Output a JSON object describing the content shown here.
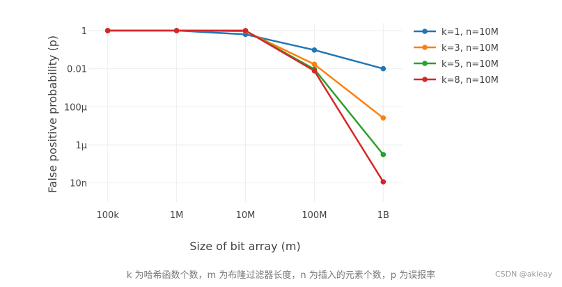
{
  "chart_data": {
    "type": "line",
    "xlabel": "Size of bit array (m)",
    "ylabel": "False positive probability (p)",
    "x_tick_labels": [
      "100k",
      "1M",
      "10M",
      "100M",
      "1B"
    ],
    "y_tick_labels": [
      "1",
      "0.01",
      "100μ",
      "1μ",
      "10n"
    ],
    "x_scale": "log",
    "y_scale": "log",
    "x_values": [
      100000,
      1000000,
      10000000,
      100000000,
      1000000000
    ],
    "y_tick_values": [
      1,
      0.01,
      0.0001,
      1e-06,
      1e-08
    ],
    "ylim": [
      1e-09,
      2.5
    ],
    "grid": true,
    "legend_position": "top-right",
    "series": [
      {
        "name": "k=1, n=10M",
        "color": "#1f77b4",
        "values": [
          1,
          1,
          0.63,
          0.095,
          0.01
        ]
      },
      {
        "name": "k=3, n=10M",
        "color": "#ff7f0e",
        "values": [
          1,
          1,
          0.92,
          0.017,
          2.6e-05
        ]
      },
      {
        "name": "k=5, n=10M",
        "color": "#2ca02c",
        "values": [
          1,
          1,
          0.98,
          0.0094,
          3.1e-07
        ]
      },
      {
        "name": "k=8, n=10M",
        "color": "#d62728",
        "values": [
          1,
          1,
          1,
          0.0077,
          1.15e-08
        ]
      }
    ]
  },
  "caption": "k 为哈希函数个数，m 为布隆过滤器长度，n 为插入的元素个数，p 为误报率",
  "watermark": "CSDN @akieay"
}
